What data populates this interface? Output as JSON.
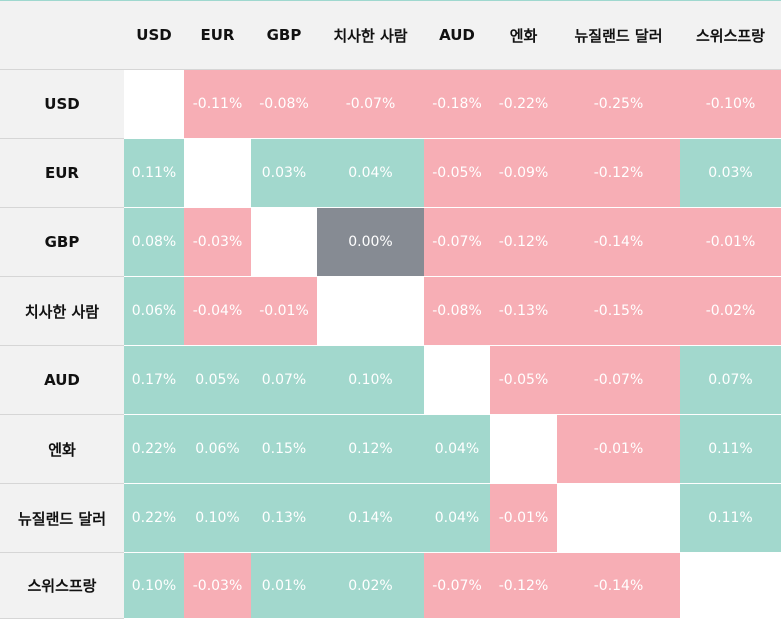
{
  "table": {
    "currencies": [
      "USD",
      "EUR",
      "GBP",
      "치사한 사람",
      "AUD",
      "엔화",
      "뉴질랜드 달러",
      "스위스프랑"
    ],
    "rows": [
      {
        "label": "USD",
        "cells": [
          null,
          "-0.11%",
          "-0.08%",
          "-0.07%",
          "-0.18%",
          "-0.22%",
          "-0.25%",
          "-0.10%"
        ]
      },
      {
        "label": "EUR",
        "cells": [
          "0.11%",
          null,
          "0.03%",
          "0.04%",
          "-0.05%",
          "-0.09%",
          "-0.12%",
          "0.03%"
        ]
      },
      {
        "label": "GBP",
        "cells": [
          "0.08%",
          "-0.03%",
          null,
          "0.00%",
          "-0.07%",
          "-0.12%",
          "-0.14%",
          "-0.01%"
        ]
      },
      {
        "label": "치사한 사람",
        "cells": [
          "0.06%",
          "-0.04%",
          "-0.01%",
          null,
          "-0.08%",
          "-0.13%",
          "-0.15%",
          "-0.02%"
        ]
      },
      {
        "label": "AUD",
        "cells": [
          "0.17%",
          "0.05%",
          "0.07%",
          "0.10%",
          null,
          "-0.05%",
          "-0.07%",
          "0.07%"
        ]
      },
      {
        "label": "엔화",
        "cells": [
          "0.22%",
          "0.06%",
          "0.15%",
          "0.12%",
          "0.04%",
          null,
          "-0.01%",
          "0.11%"
        ]
      },
      {
        "label": "뉴질랜드 달러",
        "cells": [
          "0.22%",
          "0.10%",
          "0.13%",
          "0.14%",
          "0.04%",
          "-0.01%",
          null,
          "0.11%"
        ]
      },
      {
        "label": "스위스프랑",
        "cells": [
          "0.10%",
          "-0.03%",
          "0.01%",
          "0.02%",
          "-0.07%",
          "-0.12%",
          "-0.14%",
          null
        ]
      }
    ]
  },
  "colors": {
    "positive": "#a2d8cd",
    "negative": "#f7aeb5",
    "zero": "#868b93",
    "diagonal": "#ffffff",
    "header_bg": "#f2f2f2"
  }
}
